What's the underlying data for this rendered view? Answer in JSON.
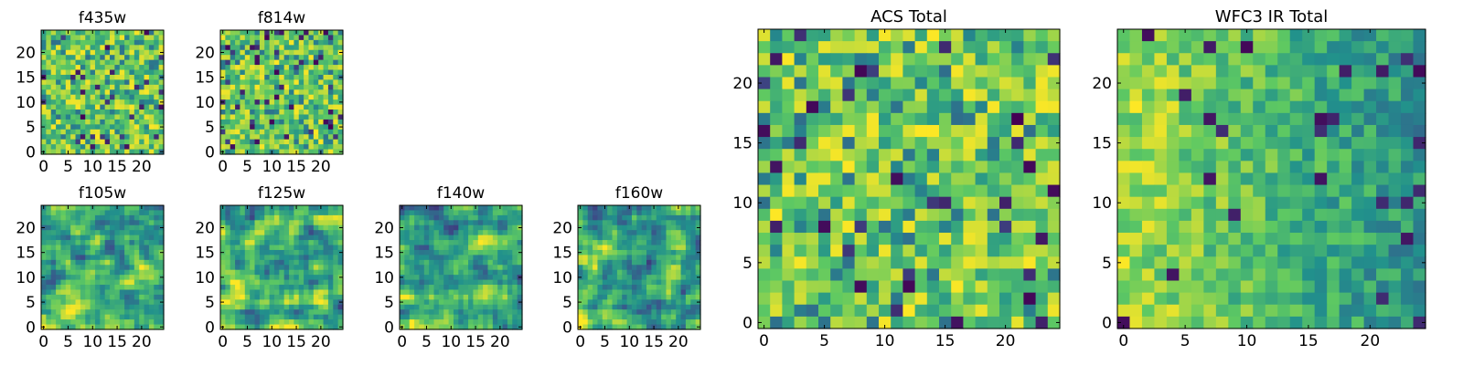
{
  "figure": {
    "colormap": "viridis",
    "colormap_stops": [
      "#440154",
      "#3b528b",
      "#21918c",
      "#5ec962",
      "#fde725"
    ],
    "axis_color": "#000000"
  },
  "chart_data": [
    {
      "id": "f435w",
      "type": "heatmap",
      "title": "f435w",
      "grid_size": [
        25,
        25
      ],
      "xlim": [
        0,
        24
      ],
      "ylim": [
        0,
        24
      ],
      "xticks": [
        "0",
        "5",
        "10",
        "15",
        "20"
      ],
      "yticks": [
        "0",
        "5",
        "10",
        "15",
        "20"
      ],
      "value_range": [
        0,
        1
      ],
      "value_summary": "random per-pixel noise, mostly green-yellow with scattered dark blue/purple pixels",
      "seed": 435,
      "style": "noise"
    },
    {
      "id": "f814w",
      "type": "heatmap",
      "title": "f814w",
      "grid_size": [
        25,
        25
      ],
      "xlim": [
        0,
        24
      ],
      "ylim": [
        0,
        24
      ],
      "xticks": [
        "0",
        "5",
        "10",
        "15",
        "20"
      ],
      "yticks": [
        "0",
        "5",
        "10",
        "15",
        "20"
      ],
      "value_range": [
        0,
        1
      ],
      "value_summary": "random per-pixel noise, green/yellow/teal with scattered dark pixels",
      "seed": 814,
      "style": "noise"
    },
    {
      "id": "f105w",
      "type": "heatmap",
      "title": "f105w",
      "grid_size": [
        25,
        25
      ],
      "xlim": [
        0,
        24
      ],
      "ylim": [
        0,
        24
      ],
      "xticks": [
        "0",
        "5",
        "10",
        "15",
        "20"
      ],
      "yticks": [
        "0",
        "5",
        "10",
        "15",
        "20"
      ],
      "value_range": [
        0,
        1
      ],
      "value_summary": "smoothed correlated noise, brighter toward lower-left",
      "seed": 105,
      "style": "smooth"
    },
    {
      "id": "f125w",
      "type": "heatmap",
      "title": "f125w",
      "grid_size": [
        25,
        25
      ],
      "xlim": [
        0,
        24
      ],
      "ylim": [
        0,
        24
      ],
      "xticks": [
        "0",
        "5",
        "10",
        "15",
        "20"
      ],
      "yticks": [
        "0",
        "5",
        "10",
        "15",
        "20"
      ],
      "value_range": [
        0,
        1
      ],
      "value_summary": "smoothed correlated noise, green/yellow with dark blotches",
      "seed": 125,
      "style": "smooth"
    },
    {
      "id": "f140w",
      "type": "heatmap",
      "title": "f140w",
      "grid_size": [
        25,
        25
      ],
      "xlim": [
        0,
        24
      ],
      "ylim": [
        0,
        24
      ],
      "xticks": [
        "0",
        "5",
        "10",
        "15",
        "20"
      ],
      "yticks": [
        "0",
        "5",
        "10",
        "15",
        "20"
      ],
      "value_range": [
        0,
        1
      ],
      "value_summary": "smoothed correlated noise, brighter along lower-left edge",
      "seed": 140,
      "style": "smooth"
    },
    {
      "id": "f160w",
      "type": "heatmap",
      "title": "f160w",
      "grid_size": [
        25,
        25
      ],
      "xlim": [
        0,
        24
      ],
      "ylim": [
        0,
        24
      ],
      "xticks": [
        "0",
        "5",
        "10",
        "15",
        "20"
      ],
      "yticks": [
        "0",
        "5",
        "10",
        "15",
        "20"
      ],
      "value_range": [
        0,
        1
      ],
      "value_summary": "smoothed correlated noise, bright yellow patches at lower-left",
      "seed": 160,
      "style": "smooth"
    },
    {
      "id": "acs_total",
      "type": "heatmap",
      "title": "ACS Total",
      "grid_size": [
        25,
        25
      ],
      "xlim": [
        0,
        24
      ],
      "ylim": [
        0,
        24
      ],
      "xticks": [
        "0",
        "5",
        "10",
        "15",
        "20"
      ],
      "yticks": [
        "0",
        "5",
        "10",
        "15",
        "20"
      ],
      "value_range": [
        0,
        1
      ],
      "value_summary": "per-pixel noise, mostly green-yellow, scattered dark purple pixels",
      "seed": 1001,
      "style": "noise"
    },
    {
      "id": "wfc3_ir_total",
      "type": "heatmap",
      "title": "WFC3 IR Total",
      "grid_size": [
        25,
        25
      ],
      "xlim": [
        0,
        24
      ],
      "ylim": [
        0,
        24
      ],
      "xticks": [
        "0",
        "5",
        "10",
        "15",
        "20"
      ],
      "yticks": [
        "0",
        "5",
        "10",
        "15",
        "20"
      ],
      "value_range": [
        0,
        1
      ],
      "value_summary": "per-pixel noise with brighter yellow region on left half, teal toward right",
      "seed": 2002,
      "style": "gradient"
    }
  ]
}
